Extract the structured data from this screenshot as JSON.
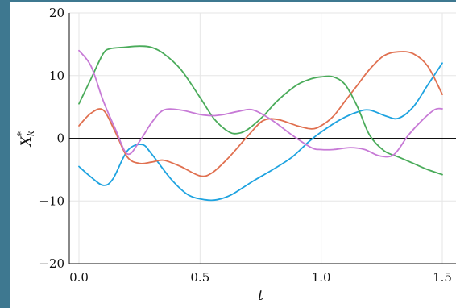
{
  "chart_data": {
    "type": "line",
    "xlabel": "t",
    "ylabel": "X*k",
    "ylabel_main": "X",
    "ylabel_sup": "*",
    "ylabel_sub": "k",
    "xlim": [
      0,
      1.5
    ],
    "ylim": [
      -20,
      20
    ],
    "xticks": [
      0.0,
      0.5,
      1.0,
      1.5
    ],
    "xtick_labels": [
      "0.0",
      "0.5",
      "1.0",
      "1.5"
    ],
    "yticks": [
      -20,
      -10,
      0,
      10,
      20
    ],
    "ytick_labels": [
      "−20",
      "−10",
      "0",
      "10",
      "20"
    ],
    "grid": true,
    "zero_line": true,
    "series": [
      {
        "color": "#1ea3e0",
        "x": [
          0,
          0.05,
          0.1,
          0.14,
          0.2,
          0.26,
          0.3,
          0.38,
          0.45,
          0.52,
          0.57,
          0.63,
          0.72,
          0.8,
          0.88,
          0.95,
          1.0,
          1.08,
          1.15,
          1.2,
          1.27,
          1.32,
          1.38,
          1.44,
          1.5
        ],
        "values": [
          -4.5,
          -6.2,
          -7.5,
          -6.5,
          -2.0,
          -1.0,
          -2.5,
          -6.5,
          -9.0,
          -9.8,
          -9.8,
          -9.0,
          -6.8,
          -5.0,
          -3.0,
          -0.5,
          1.0,
          3.0,
          4.2,
          4.5,
          3.5,
          3.2,
          5.0,
          8.5,
          12.0
        ]
      },
      {
        "color": "#e07050",
        "x": [
          0,
          0.05,
          0.1,
          0.15,
          0.2,
          0.25,
          0.3,
          0.35,
          0.42,
          0.5,
          0.55,
          0.62,
          0.7,
          0.76,
          0.82,
          0.9,
          0.96,
          1.0,
          1.05,
          1.1,
          1.15,
          1.2,
          1.26,
          1.32,
          1.38,
          1.44,
          1.5
        ],
        "values": [
          2.0,
          4.0,
          4.5,
          1.0,
          -3.0,
          -4.0,
          -3.8,
          -3.5,
          -4.5,
          -6.0,
          -5.5,
          -3.0,
          0.5,
          2.8,
          3.0,
          2.0,
          1.5,
          2.0,
          3.5,
          6.0,
          8.5,
          11.0,
          13.2,
          13.8,
          13.5,
          11.5,
          7.0
        ]
      },
      {
        "color": "#4aab5a",
        "x": [
          0,
          0.05,
          0.1,
          0.13,
          0.18,
          0.25,
          0.3,
          0.35,
          0.42,
          0.5,
          0.56,
          0.62,
          0.66,
          0.7,
          0.76,
          0.82,
          0.9,
          0.96,
          1.0,
          1.05,
          1.1,
          1.15,
          1.2,
          1.26,
          1.32,
          1.38,
          1.44,
          1.5
        ],
        "values": [
          5.5,
          9.5,
          13.5,
          14.3,
          14.5,
          14.7,
          14.5,
          13.5,
          11.0,
          6.5,
          3.0,
          1.0,
          0.8,
          1.5,
          3.5,
          6.0,
          8.5,
          9.5,
          9.8,
          9.8,
          8.5,
          5.0,
          0.5,
          -2.0,
          -3.0,
          -4.0,
          -5.0,
          -5.8
        ]
      },
      {
        "color": "#c77ad6",
        "x": [
          0,
          0.05,
          0.1,
          0.15,
          0.2,
          0.25,
          0.3,
          0.35,
          0.42,
          0.5,
          0.55,
          0.6,
          0.66,
          0.72,
          0.8,
          0.88,
          0.96,
          1.0,
          1.05,
          1.12,
          1.18,
          1.24,
          1.3,
          1.36,
          1.42,
          1.47,
          1.5
        ],
        "values": [
          14.0,
          11.5,
          6.0,
          1.5,
          -2.5,
          -0.5,
          2.5,
          4.5,
          4.5,
          3.8,
          3.6,
          3.8,
          4.3,
          4.5,
          2.8,
          0.5,
          -1.5,
          -1.8,
          -1.8,
          -1.5,
          -1.8,
          -2.8,
          -2.6,
          0.5,
          3.0,
          4.6,
          4.7
        ]
      }
    ]
  }
}
